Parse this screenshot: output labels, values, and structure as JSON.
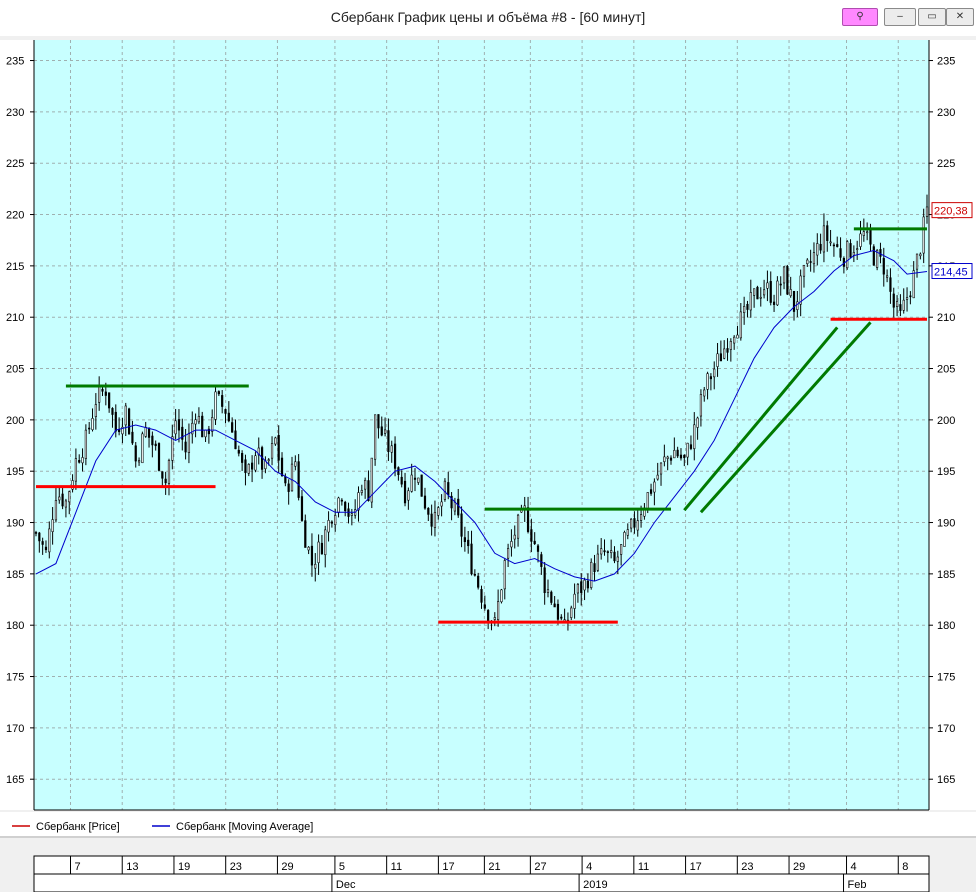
{
  "window": {
    "title": "Сбербанк График цены и объёма #8 - [60 минут]",
    "buttons": {
      "link_icon": "link-icon",
      "minimize": "minimize-icon",
      "restore": "restore-icon",
      "close": "close-icon"
    }
  },
  "colors": {
    "background": "#c8ffff",
    "price": "#cc0000",
    "moving_average": "#0000cc",
    "level_green": "#007a00",
    "level_red": "#ff0000"
  },
  "chart_data": {
    "type": "candlestick",
    "ylim": [
      162,
      237
    ],
    "y_ticks": [
      165,
      170,
      175,
      180,
      185,
      190,
      195,
      200,
      205,
      210,
      215,
      220,
      225,
      230,
      235
    ],
    "x_day_labels": [
      "7",
      "13",
      "19",
      "23",
      "29",
      "5",
      "11",
      "17",
      "21",
      "27",
      "4",
      "11",
      "17",
      "23",
      "29",
      "4",
      "8"
    ],
    "x_month_labels": [
      "Dec",
      "2019",
      "Feb"
    ],
    "last_values": {
      "price": "220,38",
      "moving_average": "214,45"
    },
    "legend": [
      {
        "name": "Сбербанк [Price]",
        "color": "#cc0000"
      },
      {
        "name": "Сбербанк [Moving Average]",
        "color": "#0000cc"
      }
    ],
    "price_path": [
      [
        0,
        189
      ],
      [
        3,
        187
      ],
      [
        6,
        193
      ],
      [
        9,
        192
      ],
      [
        12,
        196
      ],
      [
        15,
        198
      ],
      [
        18,
        202
      ],
      [
        21,
        203
      ],
      [
        24,
        199
      ],
      [
        27,
        201
      ],
      [
        30,
        196
      ],
      [
        33,
        199
      ],
      [
        36,
        197
      ],
      [
        39,
        194
      ],
      [
        42,
        200
      ],
      [
        45,
        197
      ],
      [
        48,
        201
      ],
      [
        51,
        198
      ],
      [
        54,
        202
      ],
      [
        57,
        201
      ],
      [
        60,
        198
      ],
      [
        63,
        194
      ],
      [
        66,
        197
      ],
      [
        69,
        195
      ],
      [
        72,
        198
      ],
      [
        75,
        193
      ],
      [
        78,
        196
      ],
      [
        80,
        190
      ],
      [
        83,
        186
      ],
      [
        86,
        188
      ],
      [
        89,
        191
      ],
      [
        92,
        193
      ],
      [
        95,
        190
      ],
      [
        98,
        194
      ],
      [
        100,
        193
      ],
      [
        102,
        200
      ],
      [
        105,
        198
      ],
      [
        108,
        196
      ],
      [
        111,
        193
      ],
      [
        114,
        195
      ],
      [
        117,
        192
      ],
      [
        120,
        190
      ],
      [
        123,
        193
      ],
      [
        126,
        191
      ],
      [
        129,
        188
      ],
      [
        132,
        185
      ],
      [
        135,
        182
      ],
      [
        138,
        180
      ],
      [
        141,
        186
      ],
      [
        144,
        189
      ],
      [
        147,
        191
      ],
      [
        150,
        188
      ],
      [
        153,
        184
      ],
      [
        156,
        182
      ],
      [
        159,
        179.5
      ],
      [
        162,
        183
      ],
      [
        165,
        184
      ],
      [
        168,
        186
      ],
      [
        171,
        187
      ],
      [
        174,
        186
      ],
      [
        177,
        188
      ],
      [
        180,
        190
      ],
      [
        183,
        192
      ],
      [
        186,
        194
      ],
      [
        189,
        196
      ],
      [
        192,
        197
      ],
      [
        195,
        196
      ],
      [
        198,
        199
      ],
      [
        201,
        203
      ],
      [
        204,
        205
      ],
      [
        207,
        207
      ],
      [
        210,
        209
      ],
      [
        213,
        210
      ],
      [
        216,
        212
      ],
      [
        219,
        213
      ],
      [
        222,
        212
      ],
      [
        225,
        214
      ],
      [
        228,
        211
      ],
      [
        231,
        214
      ],
      [
        234,
        216
      ],
      [
        237,
        218
      ],
      [
        240,
        217
      ],
      [
        243,
        216
      ],
      [
        246,
        217
      ],
      [
        249,
        218
      ],
      [
        252,
        216
      ],
      [
        255,
        215
      ],
      [
        258,
        211
      ],
      [
        260,
        210
      ],
      [
        262,
        212
      ],
      [
        264,
        214
      ],
      [
        266,
        217
      ],
      [
        268,
        220.4
      ]
    ],
    "moving_average_path": [
      [
        0,
        185
      ],
      [
        6,
        186
      ],
      [
        12,
        191
      ],
      [
        18,
        196
      ],
      [
        24,
        199
      ],
      [
        30,
        199.5
      ],
      [
        36,
        199
      ],
      [
        42,
        198
      ],
      [
        48,
        199
      ],
      [
        54,
        199
      ],
      [
        60,
        198
      ],
      [
        66,
        197
      ],
      [
        72,
        195
      ],
      [
        78,
        194
      ],
      [
        84,
        192
      ],
      [
        90,
        191
      ],
      [
        96,
        191
      ],
      [
        102,
        193
      ],
      [
        108,
        195
      ],
      [
        114,
        195.5
      ],
      [
        120,
        194
      ],
      [
        126,
        192
      ],
      [
        132,
        190
      ],
      [
        138,
        187
      ],
      [
        144,
        186
      ],
      [
        150,
        186.5
      ],
      [
        156,
        185.5
      ],
      [
        162,
        184.7
      ],
      [
        168,
        184.3
      ],
      [
        174,
        185
      ],
      [
        180,
        187
      ],
      [
        186,
        190
      ],
      [
        192,
        192.5
      ],
      [
        198,
        195
      ],
      [
        204,
        198
      ],
      [
        210,
        202
      ],
      [
        216,
        206
      ],
      [
        222,
        209
      ],
      [
        228,
        211
      ],
      [
        234,
        212.5
      ],
      [
        240,
        214.5
      ],
      [
        246,
        216
      ],
      [
        252,
        216.5
      ],
      [
        258,
        215.5
      ],
      [
        262,
        214.2
      ],
      [
        268,
        214.45
      ]
    ],
    "levels": [
      {
        "color": "green",
        "from": 9,
        "to": 64,
        "y": 203.3
      },
      {
        "color": "red",
        "from": 0,
        "to": 54,
        "y": 193.5
      },
      {
        "color": "green",
        "from": 135,
        "to": 191,
        "y": 191.3
      },
      {
        "color": "red",
        "from": 121,
        "to": 175,
        "y": 180.3
      },
      {
        "color": "green",
        "from": 246,
        "to": 268,
        "y": 218.6
      },
      {
        "color": "red",
        "from": 239,
        "to": 268,
        "y": 209.8
      }
    ],
    "trend_lines": [
      {
        "color": "green",
        "from": [
          195,
          191.2
        ],
        "to": [
          241,
          209
        ]
      },
      {
        "color": "green",
        "from": [
          200,
          191
        ],
        "to": [
          251,
          209.5
        ]
      }
    ]
  }
}
